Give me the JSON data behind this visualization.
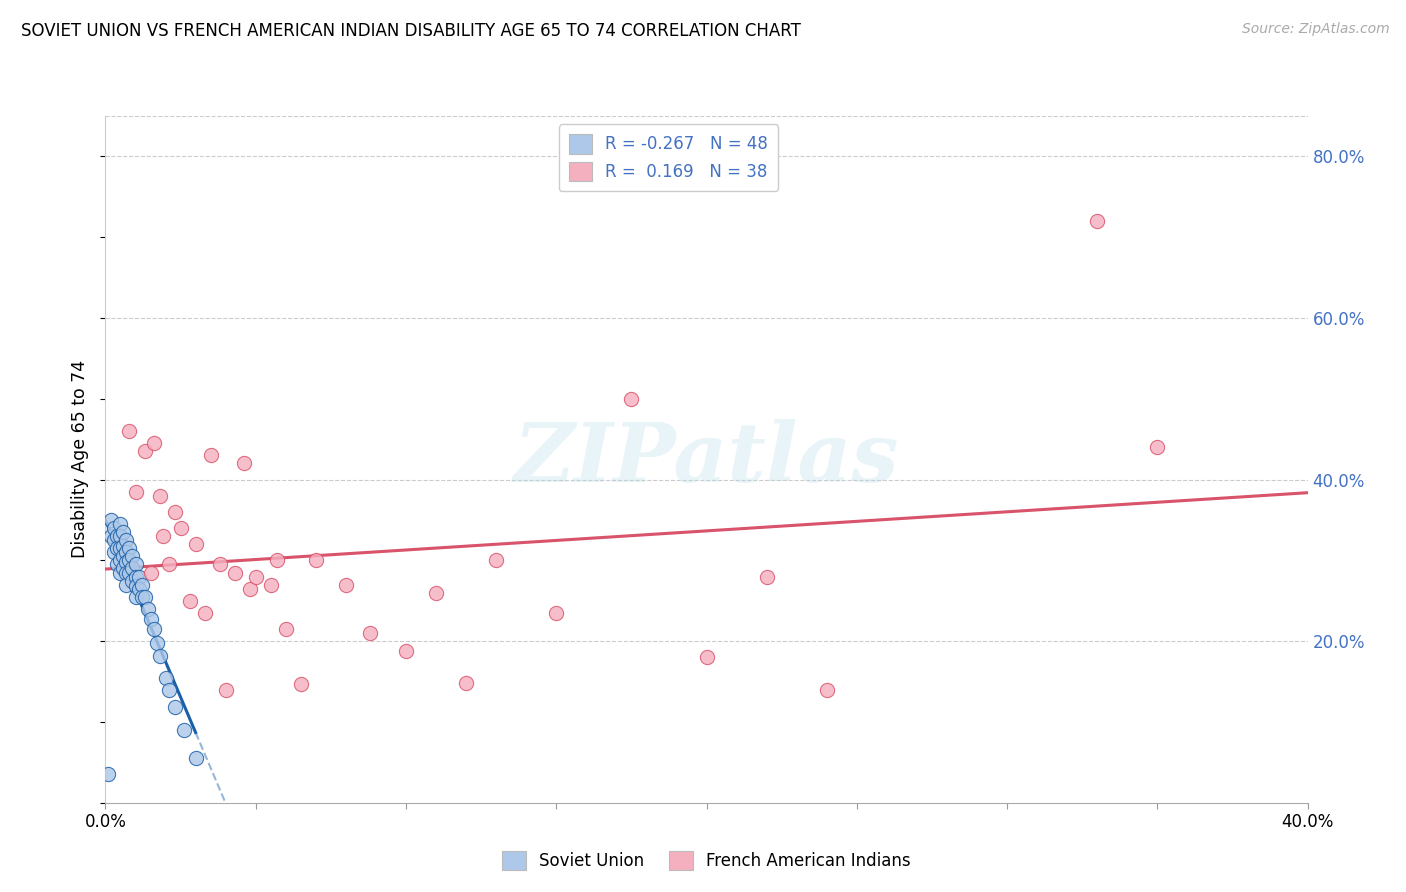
{
  "title": "SOVIET UNION VS FRENCH AMERICAN INDIAN DISABILITY AGE 65 TO 74 CORRELATION CHART",
  "source": "Source: ZipAtlas.com",
  "ylabel_label": "Disability Age 65 to 74",
  "xlim": [
    0.0,
    0.4
  ],
  "ylim": [
    0.0,
    0.85
  ],
  "y_ticks_right": [
    0.0,
    0.2,
    0.4,
    0.6,
    0.8
  ],
  "y_tick_labels_right": [
    "",
    "20.0%",
    "40.0%",
    "60.0%",
    "80.0%"
  ],
  "x_tick_positions": [
    0.0,
    0.05,
    0.1,
    0.15,
    0.2,
    0.25,
    0.3,
    0.35,
    0.4
  ],
  "x_tick_labels": [
    "0.0%",
    "",
    "",
    "",
    "",
    "",
    "",
    "",
    "40.0%"
  ],
  "legend_label1": "Soviet Union",
  "legend_label2": "French American Indians",
  "R1": -0.267,
  "N1": 48,
  "R2": 0.169,
  "N2": 38,
  "color1": "#adc8e8",
  "color2": "#f5b0c0",
  "line_color1": "#1a5fa8",
  "line_color2": "#d9536a",
  "watermark": "ZIPatlas",
  "soviet_x": [
    0.001,
    0.002,
    0.002,
    0.003,
    0.003,
    0.003,
    0.004,
    0.004,
    0.004,
    0.005,
    0.005,
    0.005,
    0.005,
    0.005,
    0.006,
    0.006,
    0.006,
    0.006,
    0.007,
    0.007,
    0.007,
    0.007,
    0.007,
    0.008,
    0.008,
    0.008,
    0.009,
    0.009,
    0.009,
    0.01,
    0.01,
    0.01,
    0.01,
    0.011,
    0.011,
    0.012,
    0.012,
    0.013,
    0.014,
    0.015,
    0.016,
    0.017,
    0.018,
    0.02,
    0.021,
    0.023,
    0.026,
    0.03
  ],
  "soviet_y": [
    0.036,
    0.35,
    0.33,
    0.34,
    0.325,
    0.31,
    0.33,
    0.315,
    0.295,
    0.345,
    0.33,
    0.315,
    0.3,
    0.285,
    0.335,
    0.318,
    0.305,
    0.29,
    0.325,
    0.31,
    0.298,
    0.284,
    0.27,
    0.315,
    0.3,
    0.285,
    0.305,
    0.29,
    0.275,
    0.295,
    0.28,
    0.268,
    0.255,
    0.28,
    0.265,
    0.27,
    0.255,
    0.255,
    0.24,
    0.228,
    0.215,
    0.198,
    0.182,
    0.155,
    0.14,
    0.118,
    0.09,
    0.055
  ],
  "french_x": [
    0.008,
    0.01,
    0.013,
    0.015,
    0.016,
    0.018,
    0.019,
    0.021,
    0.023,
    0.025,
    0.028,
    0.03,
    0.033,
    0.035,
    0.038,
    0.04,
    0.043,
    0.046,
    0.048,
    0.05,
    0.055,
    0.057,
    0.06,
    0.065,
    0.07,
    0.08,
    0.088,
    0.1,
    0.11,
    0.12,
    0.13,
    0.15,
    0.175,
    0.2,
    0.22,
    0.24,
    0.33,
    0.35
  ],
  "french_y": [
    0.46,
    0.385,
    0.435,
    0.285,
    0.445,
    0.38,
    0.33,
    0.295,
    0.36,
    0.34,
    0.25,
    0.32,
    0.235,
    0.43,
    0.295,
    0.14,
    0.285,
    0.42,
    0.265,
    0.28,
    0.27,
    0.3,
    0.215,
    0.147,
    0.3,
    0.27,
    0.21,
    0.188,
    0.26,
    0.148,
    0.3,
    0.235,
    0.5,
    0.18,
    0.28,
    0.14,
    0.72,
    0.44
  ]
}
